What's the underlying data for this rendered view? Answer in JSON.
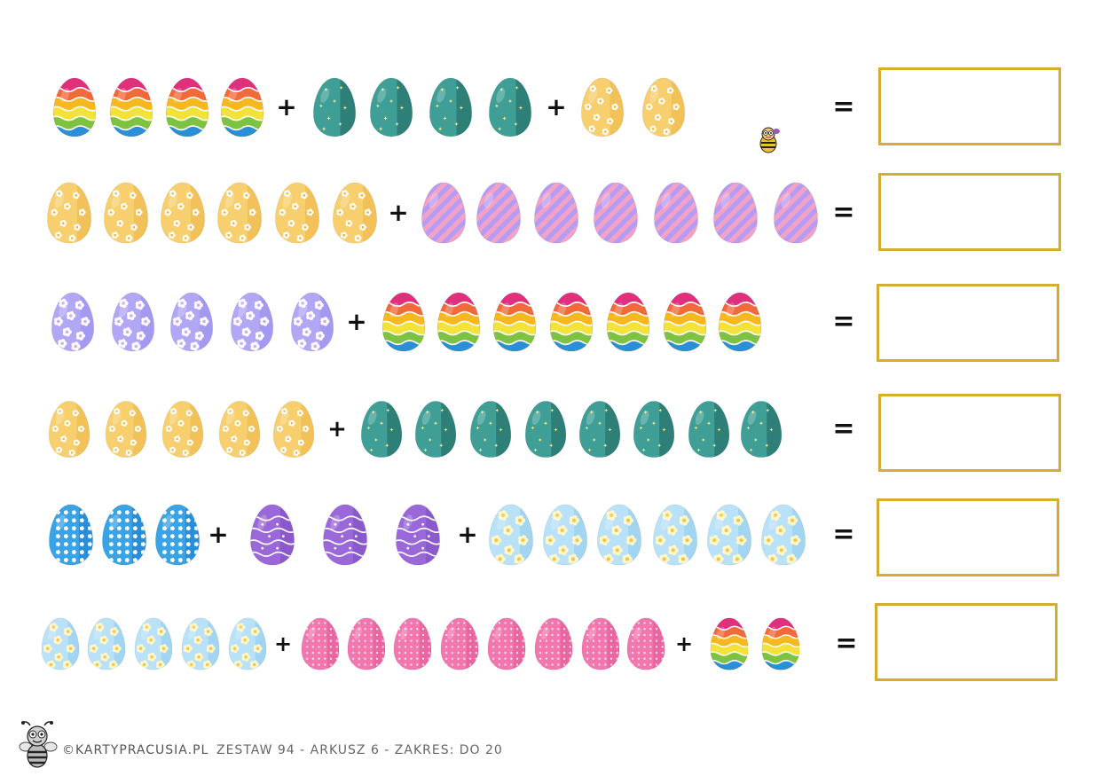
{
  "worksheet": {
    "rows": [
      {
        "groups": [
          {
            "type": "rainbow",
            "count": 4
          },
          {
            "type": "teal_star",
            "count": 4
          },
          {
            "type": "yellow_flower",
            "count": 2
          }
        ]
      },
      {
        "groups": [
          {
            "type": "yellow_flower",
            "count": 6
          },
          {
            "type": "stripe",
            "count": 7
          }
        ]
      },
      {
        "groups": [
          {
            "type": "lavender_flower",
            "count": 5
          },
          {
            "type": "rainbow",
            "count": 7
          }
        ]
      },
      {
        "groups": [
          {
            "type": "yellow_flower",
            "count": 5
          },
          {
            "type": "teal_star",
            "count": 8
          }
        ]
      },
      {
        "groups": [
          {
            "type": "blue_flower",
            "count": 3
          },
          {
            "type": "purple_wave",
            "count": 3
          },
          {
            "type": "lightblue_daisy",
            "count": 6
          }
        ]
      },
      {
        "groups": [
          {
            "type": "lightblue_daisy",
            "count": 5
          },
          {
            "type": "pink_dots",
            "count": 8
          },
          {
            "type": "rainbow",
            "count": 2
          }
        ]
      }
    ],
    "plus_sign": "+",
    "equals_sign": "="
  },
  "egg_styles": {
    "rainbow": {
      "colors": [
        "#e0307c",
        "#f26a3a",
        "#f6b81f",
        "#f2e23a",
        "#7dc242",
        "#2a8fd6"
      ]
    },
    "teal_star": {
      "base": "#3f9f97",
      "dark": "#2d7f78",
      "accent": "#f3e889"
    },
    "yellow_flower": {
      "base": "#f7cf6e",
      "dark": "#eeb94b",
      "accent": "#ffffff"
    },
    "stripe": {
      "base": "#b59cf2",
      "stripe": "#f3a2c7"
    },
    "lavender_flower": {
      "base": "#b2a7f5",
      "dark": "#9b8fec",
      "accent": "#ffffff"
    },
    "blue_flower": {
      "base": "#3aa3e6",
      "dark": "#1f7fcf",
      "accent": "#ffffff"
    },
    "purple_wave": {
      "base": "#9a68d8",
      "dark": "#7a4ac0",
      "accent": "#ffffff"
    },
    "lightblue_daisy": {
      "base": "#b9e1f7",
      "dark": "#92cdee",
      "petal": "#fff6cc",
      "center": "#f0c742"
    },
    "pink_dots": {
      "base": "#f277ae",
      "dark": "#e25b98",
      "accent": "#fbe4ef"
    }
  },
  "answer_box_color": "#d6ad2e",
  "footer": {
    "brand": "©KARTYPRACUSIA.PL",
    "info": "ZESTAW 94 - ARKUSZ 6 - ZAKRES: DO 20"
  },
  "icons": {
    "mascot": "bee-mascot-icon",
    "small_mascot": "bee-mascot-small-icon"
  }
}
